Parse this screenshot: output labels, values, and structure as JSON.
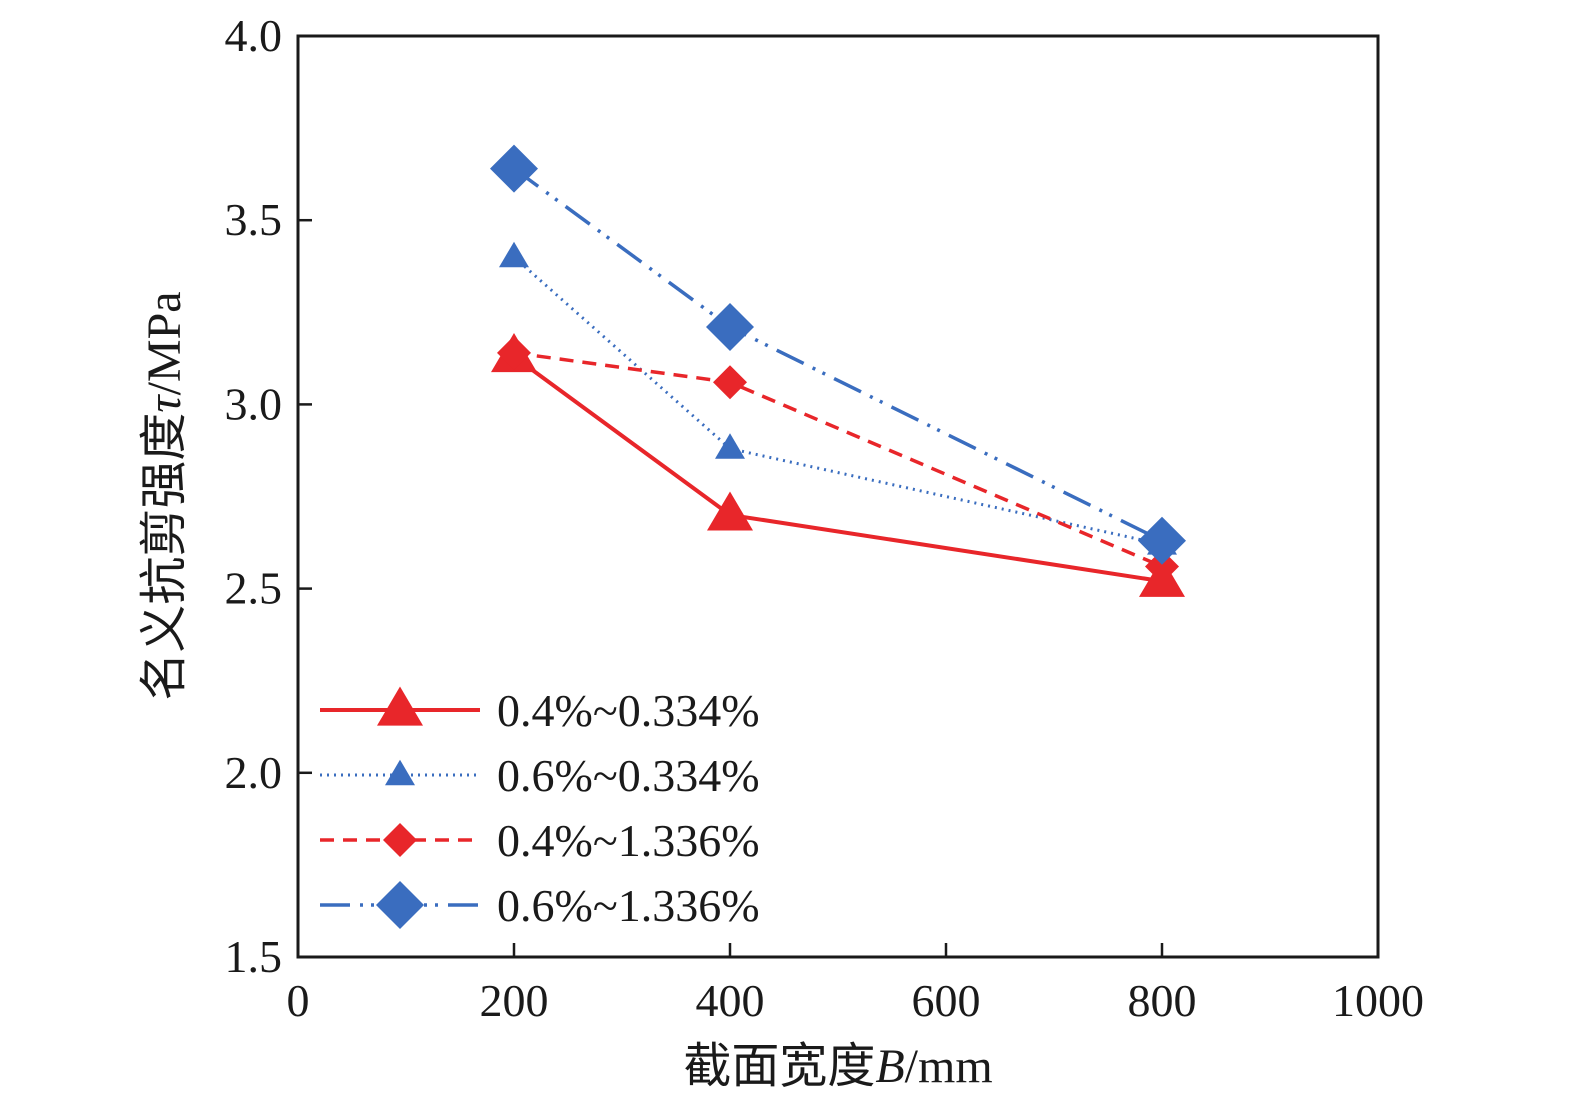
{
  "chart_data": {
    "type": "line",
    "x_axis": {
      "label_main": "截面宽度",
      "label_var": "B",
      "label_unit": "/mm",
      "range": [
        0,
        1000
      ],
      "ticks": [
        0,
        200,
        400,
        600,
        800,
        1000
      ],
      "tick_labels": [
        "0",
        "200",
        "400",
        "600",
        "800",
        "1000"
      ]
    },
    "y_axis": {
      "label_main": "名义抗剪强度",
      "label_var": "τ",
      "label_unit": "/MPa",
      "range": [
        1.5,
        4.0
      ],
      "ticks": [
        1.5,
        2.0,
        2.5,
        3.0,
        3.5,
        4.0
      ],
      "tick_labels": [
        "1.5",
        "2.0",
        "2.5",
        "3.0",
        "3.5",
        "4.0"
      ]
    },
    "grid": false,
    "legend_position": "bottom-left",
    "series": [
      {
        "name": "0.4%~0.334%",
        "x": [
          200,
          400,
          800
        ],
        "y": [
          3.13,
          2.7,
          2.52
        ],
        "color": "#e8262a",
        "line_style": "solid",
        "marker": "triangle",
        "marker_size": "large"
      },
      {
        "name": "0.6%~0.334%",
        "x": [
          200,
          400,
          800
        ],
        "y": [
          3.4,
          2.88,
          2.62
        ],
        "color": "#3a6dbf",
        "line_style": "dotted",
        "marker": "triangle",
        "marker_size": "small"
      },
      {
        "name": "0.4%~1.336%",
        "x": [
          200,
          400,
          800
        ],
        "y": [
          3.14,
          3.06,
          2.56
        ],
        "color": "#e8262a",
        "line_style": "dashed",
        "marker": "diamond",
        "marker_size": "small"
      },
      {
        "name": "0.6%~1.336%",
        "x": [
          200,
          400,
          800
        ],
        "y": [
          3.64,
          3.21,
          2.63
        ],
        "color": "#3a6dbf",
        "line_style": "dash-dot-dot",
        "marker": "diamond",
        "marker_size": "large"
      }
    ]
  }
}
